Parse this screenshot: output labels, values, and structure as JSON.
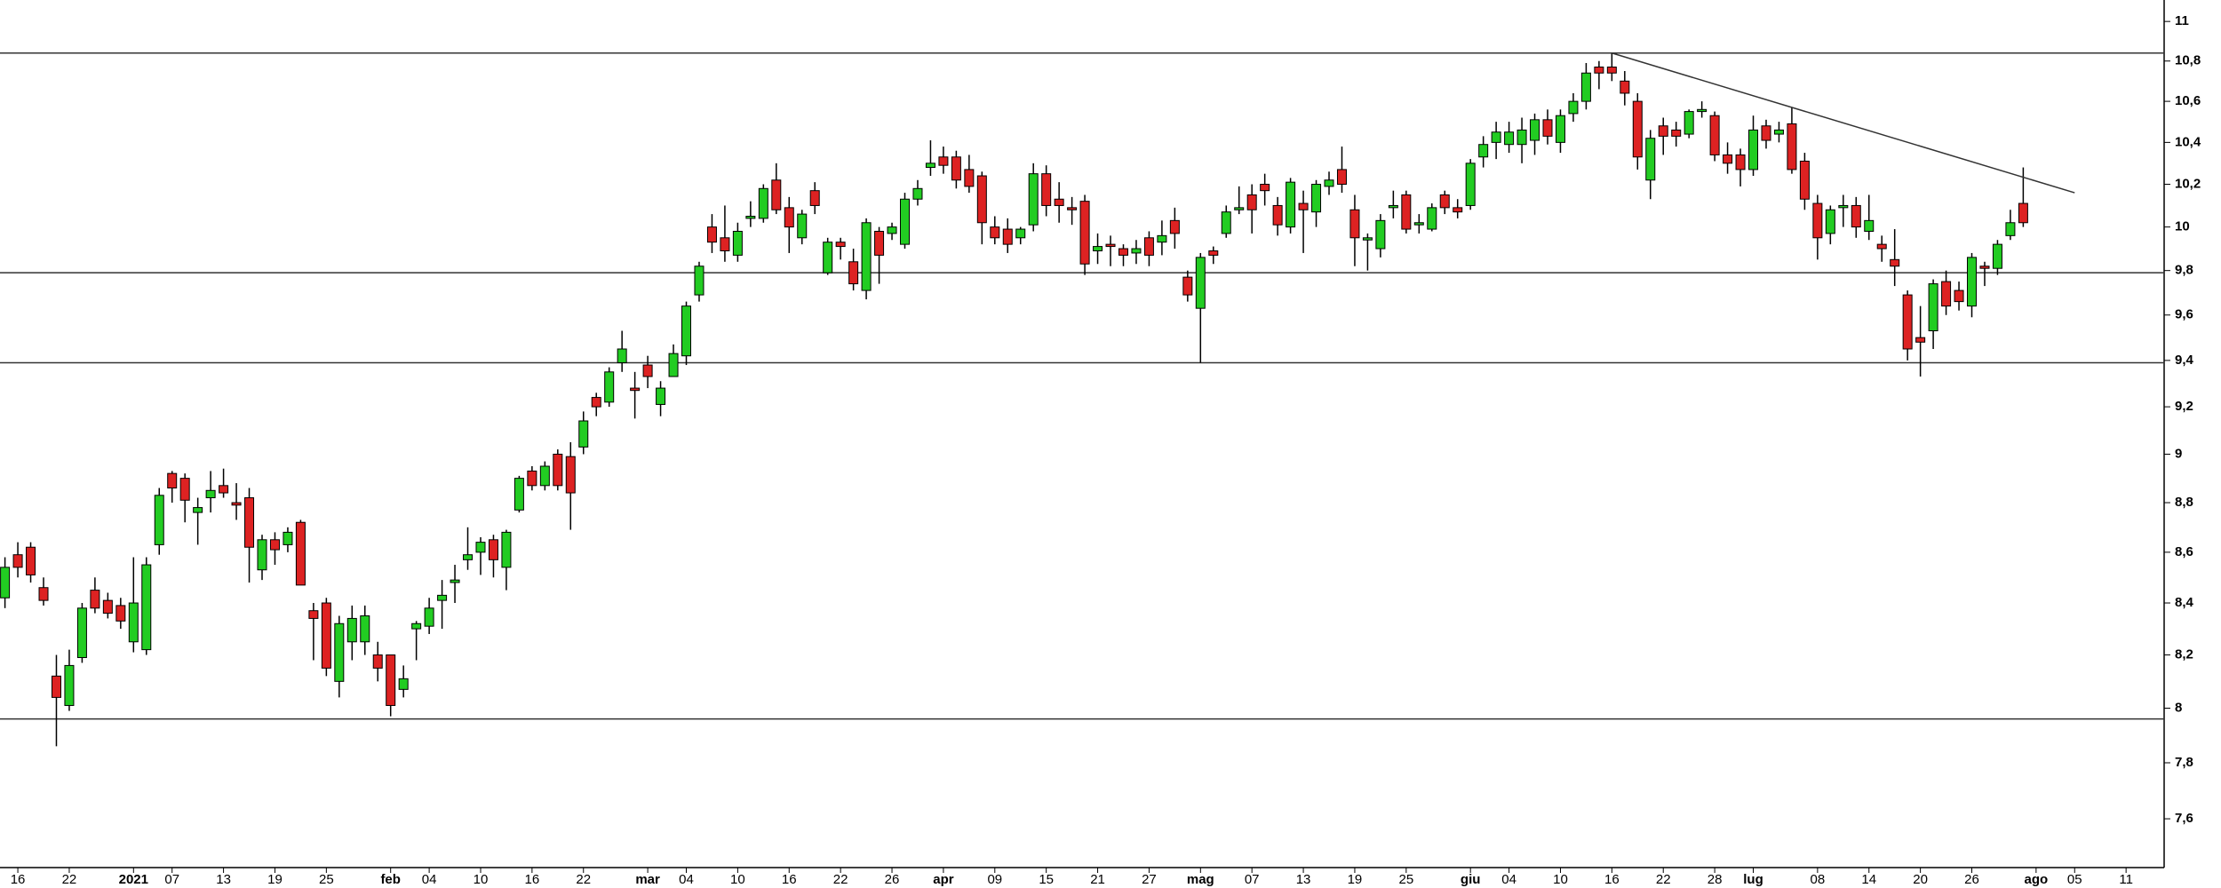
{
  "chart_data": {
    "type": "candlestick",
    "log": true,
    "ylim": [
      7.43,
      11.11
    ],
    "yticks": [
      {
        "value": 7.6,
        "label": "7,6"
      },
      {
        "value": 7.8,
        "label": "7,8"
      },
      8,
      {
        "value": 8.2,
        "label": "8,2"
      },
      {
        "value": 8.4,
        "label": "8,4"
      },
      {
        "value": 8.6,
        "label": "8,6"
      },
      {
        "value": 8.8,
        "label": "8,8"
      },
      9,
      {
        "value": 9.2,
        "label": "9,2"
      },
      {
        "value": 9.4,
        "label": "9,4"
      },
      {
        "value": 9.6,
        "label": "9,6"
      },
      {
        "value": 9.8,
        "label": "9,8"
      },
      10,
      {
        "value": 10.2,
        "label": "10,2"
      },
      {
        "value": 10.4,
        "label": "10,4"
      },
      {
        "value": 10.6,
        "label": "10,6"
      },
      {
        "value": 10.8,
        "label": "10,8"
      },
      11
    ],
    "categories": [
      null,
      "16",
      null,
      null,
      null,
      "22",
      null,
      null,
      null,
      null,
      "2021",
      null,
      null,
      "07",
      null,
      null,
      null,
      "13",
      null,
      null,
      null,
      "19",
      null,
      null,
      null,
      "25",
      null,
      null,
      null,
      null,
      "feb",
      null,
      null,
      "04",
      null,
      null,
      null,
      "10",
      null,
      null,
      null,
      "16",
      null,
      null,
      null,
      "22",
      null,
      null,
      null,
      null,
      "mar",
      null,
      null,
      "04",
      null,
      null,
      null,
      "10",
      null,
      null,
      null,
      "16",
      null,
      null,
      null,
      "22",
      null,
      null,
      null,
      "26",
      null,
      null,
      null,
      "apr",
      null,
      null,
      null,
      "09",
      null,
      null,
      null,
      "15",
      null,
      null,
      null,
      "21",
      null,
      null,
      null,
      "27",
      null,
      null,
      null,
      "mag",
      null,
      null,
      null,
      "07",
      null,
      null,
      null,
      "13",
      null,
      null,
      null,
      "19",
      null,
      null,
      null,
      "25",
      null,
      null,
      null,
      null,
      "giu",
      null,
      null,
      "04",
      null,
      null,
      null,
      "10",
      null,
      null,
      null,
      "16",
      null,
      null,
      null,
      "22",
      null,
      null,
      null,
      "28",
      null,
      null,
      "lug",
      null,
      null,
      null,
      null,
      "08",
      null,
      null,
      null,
      "14",
      null,
      null,
      null,
      "20",
      null,
      null,
      null,
      "26",
      null,
      null,
      null,
      null,
      "ago",
      null,
      null,
      "05",
      null,
      null,
      null,
      "11",
      null,
      null
    ],
    "open": [
      8.42,
      8.59,
      8.62,
      8.46,
      8.12,
      8.01,
      8.19,
      8.45,
      8.41,
      8.39,
      8.25,
      8.22,
      8.63,
      8.92,
      8.9,
      8.76,
      8.82,
      8.87,
      8.8,
      8.82,
      8.53,
      8.65,
      8.63,
      8.72,
      8.37,
      8.4,
      8.1,
      8.25,
      8.25,
      8.2,
      8.2,
      8.07,
      8.3,
      8.31,
      8.41,
      8.48,
      8.57,
      8.6,
      8.65,
      8.54,
      8.77,
      8.93,
      8.87,
      9.0,
      8.99,
      9.03,
      9.24,
      9.22,
      9.39,
      9.28,
      9.38,
      9.21,
      9.33,
      9.42,
      9.69,
      10.0,
      9.95,
      9.87,
      10.04,
      10.04,
      10.22,
      10.09,
      9.95,
      10.17,
      9.79,
      9.93,
      9.84,
      9.71,
      9.98,
      9.97,
      9.92,
      10.13,
      10.28,
      10.33,
      10.33,
      10.27,
      10.24,
      10.0,
      9.99,
      9.95,
      10.01,
      10.25,
      10.13,
      10.09,
      10.12,
      9.89,
      9.92,
      9.9,
      9.88,
      9.95,
      9.93,
      10.03,
      9.77,
      9.63,
      9.89,
      9.97,
      10.08,
      10.15,
      10.2,
      10.1,
      10.0,
      10.11,
      10.07,
      10.19,
      10.27,
      10.08,
      9.94,
      9.9,
      10.09,
      10.15,
      10.01,
      9.99,
      10.15,
      10.09,
      10.1,
      10.33,
      10.4,
      10.39,
      10.39,
      10.41,
      10.51,
      10.4,
      10.54,
      10.6,
      10.77,
      10.77,
      10.7,
      10.6,
      10.22,
      10.48,
      10.46,
      10.44,
      10.55,
      10.53,
      10.34,
      10.34,
      10.27,
      10.48,
      10.44,
      10.49,
      10.31,
      10.11,
      9.97,
      10.09,
      10.1,
      9.98,
      9.92,
      9.85,
      9.69,
      9.5,
      9.53,
      9.75,
      9.71,
      9.64,
      9.82,
      9.81,
      9.96,
      10.11,
      null,
      null,
      null,
      null,
      null,
      null,
      null,
      null,
      null,
      null
    ],
    "high": [
      8.58,
      8.64,
      8.64,
      8.5,
      8.2,
      8.22,
      8.4,
      8.5,
      8.44,
      8.42,
      8.58,
      8.58,
      8.86,
      8.93,
      8.92,
      8.82,
      8.93,
      8.94,
      8.88,
      8.86,
      8.67,
      8.68,
      8.7,
      8.73,
      8.4,
      8.42,
      8.35,
      8.39,
      8.39,
      8.25,
      8.2,
      8.16,
      8.33,
      8.42,
      8.49,
      8.55,
      8.7,
      8.66,
      8.67,
      8.69,
      8.91,
      8.95,
      8.97,
      9.02,
      9.05,
      9.18,
      9.26,
      9.37,
      9.53,
      9.35,
      9.42,
      9.31,
      9.47,
      9.66,
      9.84,
      10.06,
      10.1,
      10.02,
      10.12,
      10.2,
      10.3,
      10.14,
      10.08,
      10.21,
      9.95,
      9.95,
      9.9,
      10.04,
      10.0,
      10.02,
      10.16,
      10.22,
      10.41,
      10.38,
      10.36,
      10.34,
      10.26,
      10.05,
      10.04,
      10.0,
      10.3,
      10.29,
      10.21,
      10.14,
      10.15,
      9.97,
      9.96,
      9.92,
      9.94,
      9.98,
      10.03,
      10.09,
      9.8,
      9.88,
      9.91,
      10.1,
      10.19,
      10.2,
      10.25,
      10.14,
      10.23,
      10.17,
      10.22,
      10.26,
      10.38,
      10.15,
      9.97,
      10.06,
      10.17,
      10.17,
      10.06,
      10.11,
      10.17,
      10.13,
      10.32,
      10.43,
      10.5,
      10.5,
      10.52,
      10.54,
      10.56,
      10.56,
      10.64,
      10.79,
      10.8,
      10.84,
      10.75,
      10.64,
      10.46,
      10.52,
      10.5,
      10.56,
      10.6,
      10.55,
      10.4,
      10.37,
      10.53,
      10.51,
      10.5,
      10.57,
      10.35,
      10.15,
      10.1,
      10.15,
      10.14,
      10.15,
      9.96,
      9.99,
      9.71,
      9.64,
      9.76,
      9.8,
      9.75,
      9.88,
      9.84,
      9.94,
      10.08,
      10.28,
      null,
      null,
      null,
      null,
      null,
      null,
      null,
      null,
      null,
      null
    ],
    "low": [
      8.38,
      8.5,
      8.48,
      8.39,
      7.86,
      7.99,
      8.17,
      8.36,
      8.34,
      8.3,
      8.21,
      8.2,
      8.59,
      8.8,
      8.72,
      8.63,
      8.76,
      8.82,
      8.73,
      8.48,
      8.49,
      8.55,
      8.6,
      8.47,
      8.18,
      8.12,
      8.04,
      8.18,
      8.2,
      8.1,
      7.97,
      8.04,
      8.18,
      8.28,
      8.3,
      8.4,
      8.53,
      8.51,
      8.5,
      8.45,
      8.76,
      8.85,
      8.85,
      8.85,
      8.69,
      9.0,
      9.16,
      9.2,
      9.35,
      9.15,
      9.28,
      9.16,
      9.33,
      9.38,
      9.66,
      9.88,
      9.84,
      9.84,
      10.0,
      10.02,
      10.06,
      9.88,
      9.92,
      10.06,
      9.78,
      9.85,
      9.71,
      9.67,
      9.74,
      9.94,
      9.9,
      10.1,
      10.24,
      10.25,
      10.18,
      10.16,
      9.92,
      9.92,
      9.88,
      9.92,
      9.98,
      10.05,
      10.02,
      10.01,
      9.78,
      9.83,
      9.82,
      9.82,
      9.83,
      9.82,
      9.87,
      9.9,
      9.66,
      9.39,
      9.83,
      9.95,
      10.06,
      9.97,
      10.1,
      9.96,
      9.97,
      9.88,
      10.0,
      10.15,
      10.16,
      9.82,
      9.8,
      9.86,
      10.04,
      9.97,
      9.97,
      9.98,
      10.06,
      10.04,
      10.08,
      10.28,
      10.32,
      10.35,
      10.3,
      10.34,
      10.39,
      10.35,
      10.5,
      10.56,
      10.66,
      10.7,
      10.58,
      10.27,
      10.13,
      10.34,
      10.38,
      10.42,
      10.52,
      10.31,
      10.25,
      10.19,
      10.24,
      10.37,
      10.4,
      10.25,
      10.08,
      9.85,
      9.92,
      10.0,
      9.95,
      9.94,
      9.84,
      9.73,
      9.4,
      9.33,
      9.45,
      9.6,
      9.62,
      9.59,
      9.73,
      9.78,
      9.94,
      10.0,
      null,
      null,
      null,
      null,
      null,
      null,
      null,
      null,
      null,
      null
    ],
    "close": [
      8.54,
      8.54,
      8.51,
      8.41,
      8.04,
      8.16,
      8.38,
      8.38,
      8.36,
      8.33,
      8.4,
      8.55,
      8.83,
      8.86,
      8.81,
      8.78,
      8.85,
      8.84,
      8.79,
      8.62,
      8.65,
      8.61,
      8.68,
      8.47,
      8.34,
      8.15,
      8.32,
      8.34,
      8.35,
      8.15,
      8.01,
      8.11,
      8.32,
      8.38,
      8.43,
      8.49,
      8.59,
      8.64,
      8.57,
      8.68,
      8.9,
      8.87,
      8.95,
      8.87,
      8.84,
      9.14,
      9.2,
      9.35,
      9.45,
      9.27,
      9.33,
      9.28,
      9.43,
      9.64,
      9.82,
      9.93,
      9.89,
      9.98,
      10.05,
      10.18,
      10.08,
      10.0,
      10.06,
      10.1,
      9.93,
      9.91,
      9.74,
      10.02,
      9.87,
      10.0,
      10.13,
      10.18,
      10.3,
      10.29,
      10.22,
      10.19,
      10.02,
      9.95,
      9.92,
      9.99,
      10.25,
      10.1,
      10.1,
      10.08,
      9.83,
      9.91,
      9.91,
      9.87,
      9.9,
      9.87,
      9.96,
      9.97,
      9.69,
      9.86,
      9.87,
      10.07,
      10.09,
      10.08,
      10.17,
      10.01,
      10.21,
      10.08,
      10.2,
      10.22,
      10.2,
      9.95,
      9.95,
      10.03,
      10.1,
      9.99,
      10.02,
      10.09,
      10.09,
      10.07,
      10.3,
      10.39,
      10.45,
      10.45,
      10.46,
      10.51,
      10.43,
      10.53,
      10.6,
      10.74,
      10.74,
      10.74,
      10.64,
      10.33,
      10.42,
      10.43,
      10.43,
      10.55,
      10.56,
      10.34,
      10.3,
      10.27,
      10.46,
      10.41,
      10.46,
      10.27,
      10.13,
      9.95,
      10.08,
      10.1,
      10.0,
      10.03,
      9.9,
      9.82,
      9.45,
      9.48,
      9.74,
      9.64,
      9.66,
      9.86,
      9.81,
      9.92,
      10.02,
      10.02,
      null,
      null,
      null,
      null,
      null,
      null,
      null,
      null,
      null,
      null
    ],
    "up_color": "#22cc22",
    "down_color": "#dd2222",
    "levels": [
      10.84,
      9.79,
      9.39,
      7.96
    ],
    "trendline": {
      "x": [
        125,
        161
      ],
      "values": [
        10.84,
        10.16
      ]
    }
  }
}
